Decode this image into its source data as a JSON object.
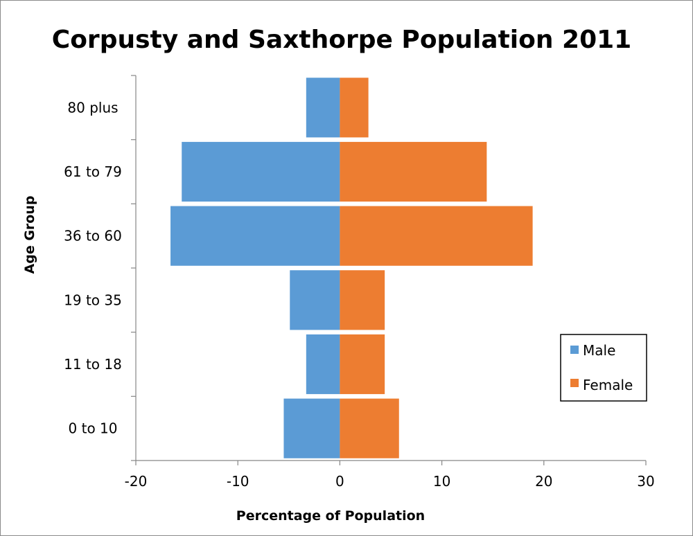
{
  "chart_data": {
    "type": "bar",
    "orientation": "horizontal",
    "title": "Corpusty and Saxthorpe Population 2011",
    "xlabel": "Percentage of Population",
    "ylabel": "Age Group",
    "categories": [
      "0 to 10",
      "11 to 18",
      "19 to 35",
      "36 to 60",
      "61 to 79",
      "80 plus"
    ],
    "series": [
      {
        "name": "Male",
        "color": "#5b9bd5",
        "values": [
          -5.5,
          -3.3,
          -4.9,
          -16.6,
          -15.5,
          -3.3
        ]
      },
      {
        "name": "Female",
        "color": "#ed7d31",
        "values": [
          5.8,
          4.4,
          4.4,
          18.9,
          14.4,
          2.8
        ]
      }
    ],
    "xlim": [
      -20,
      30
    ],
    "xticks": [
      -20,
      -10,
      0,
      10,
      20,
      30
    ],
    "grid": false,
    "legend_position": "right"
  }
}
